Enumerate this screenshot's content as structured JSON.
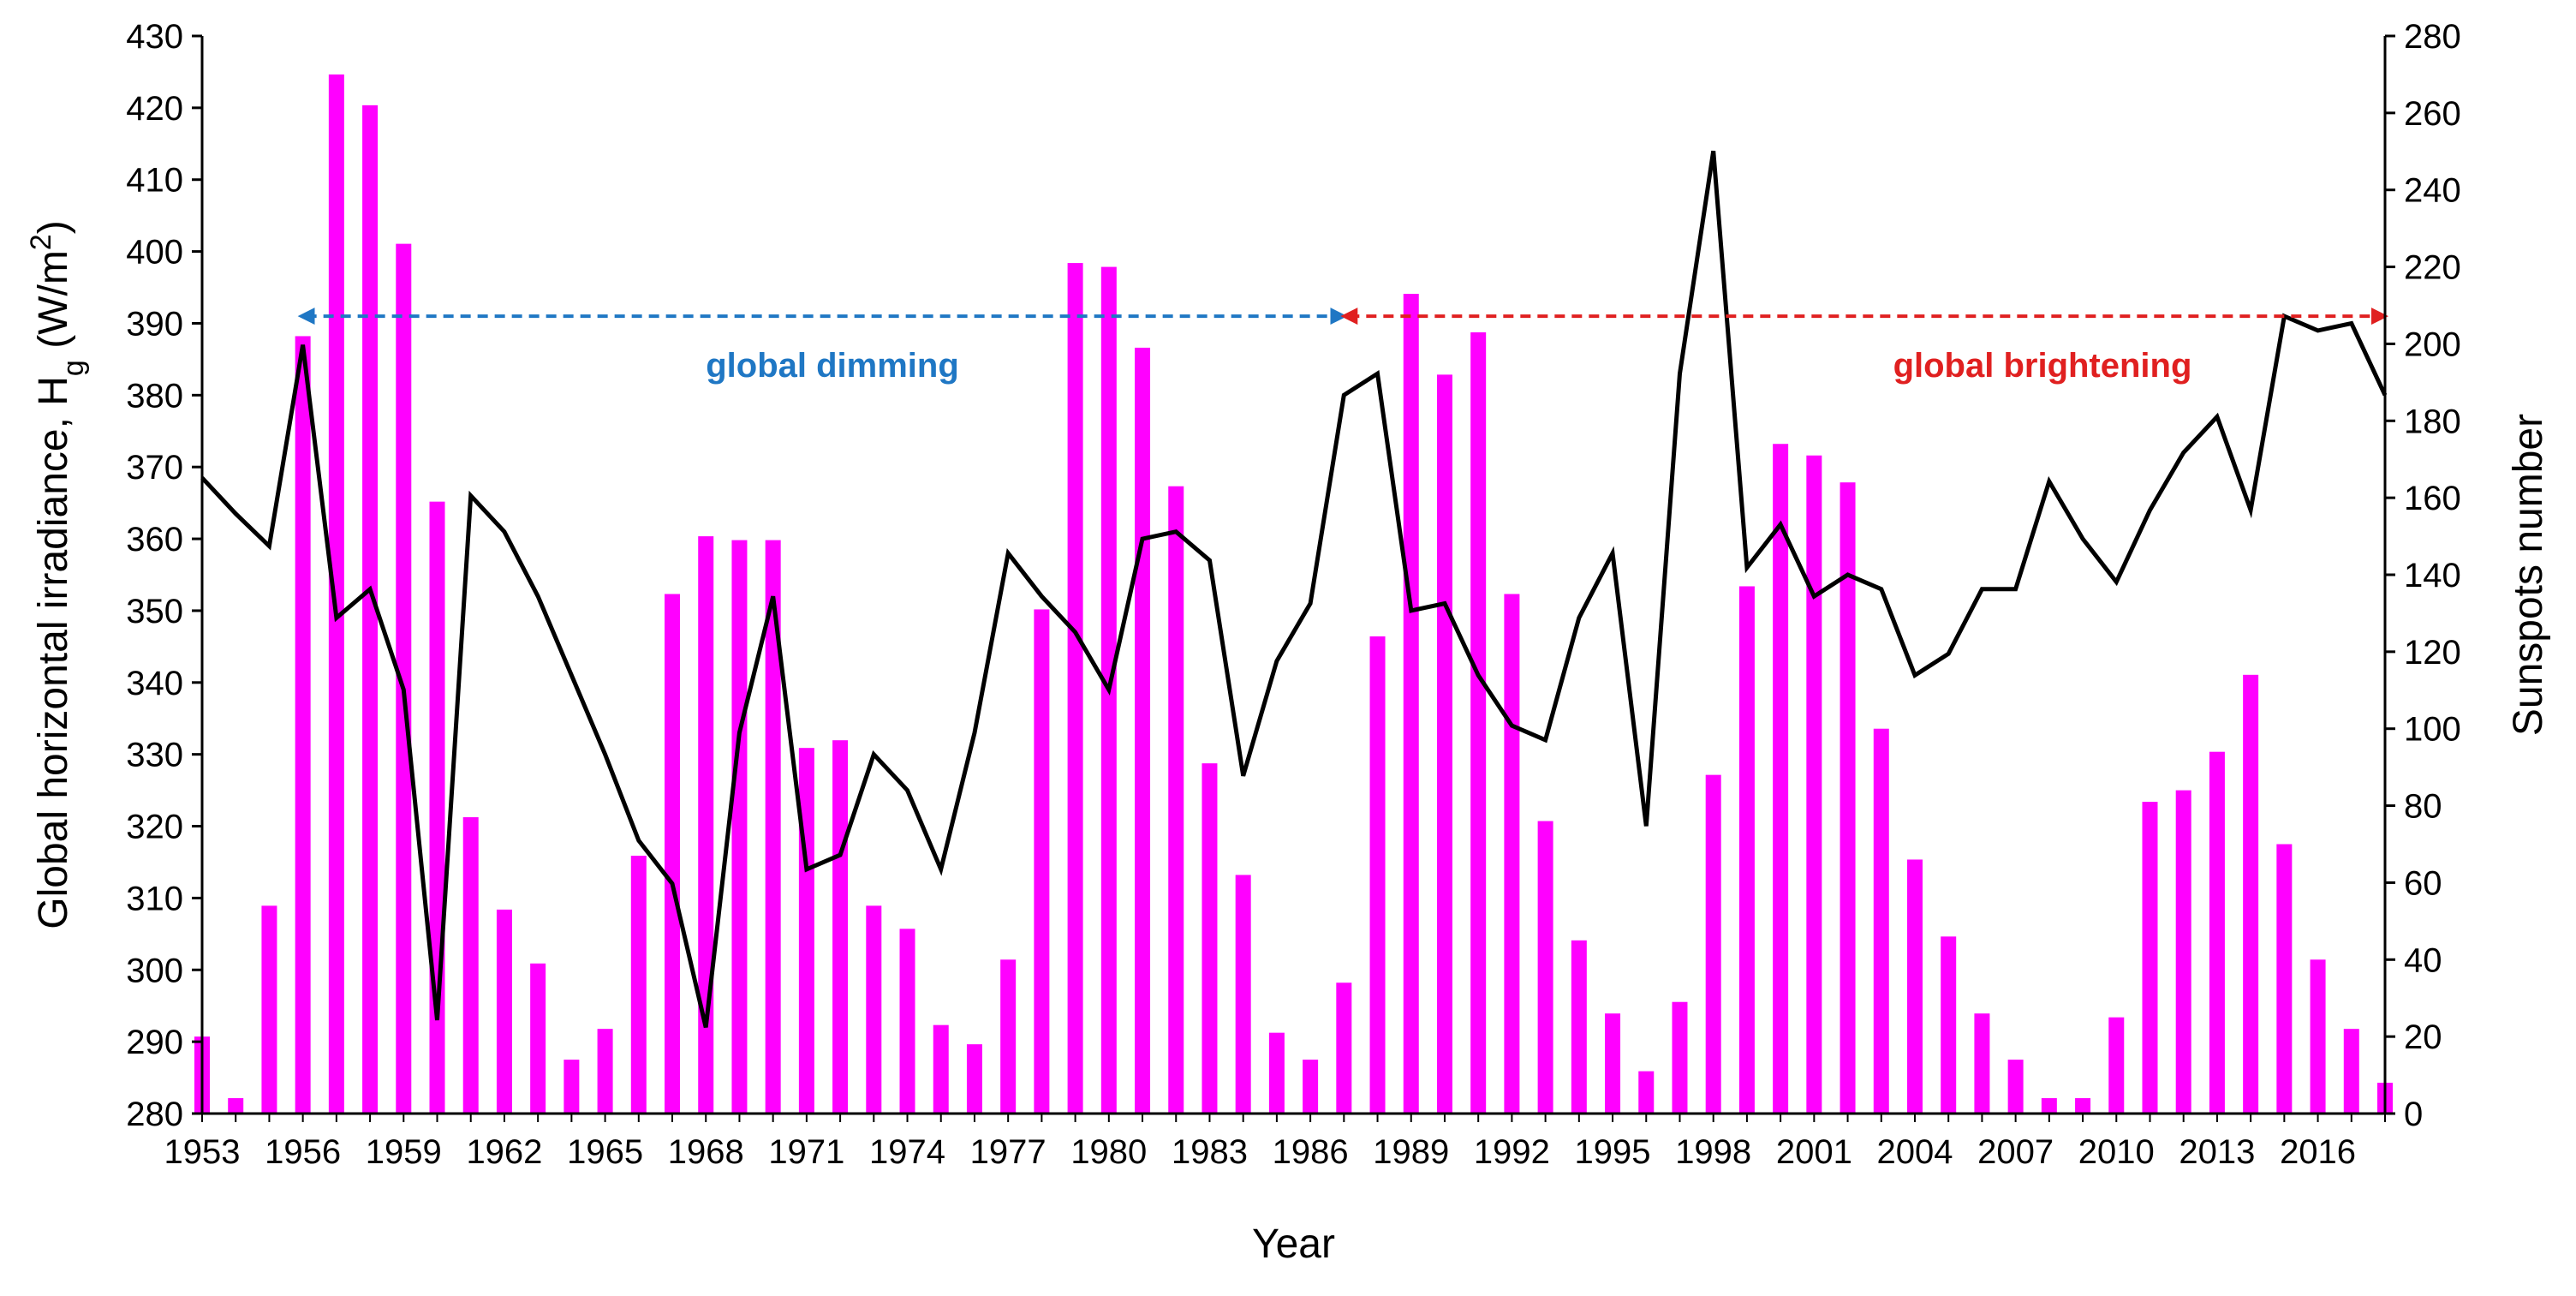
{
  "chart_data": {
    "type": "bar+line",
    "x": [
      1953,
      1954,
      1955,
      1956,
      1957,
      1958,
      1959,
      1960,
      1961,
      1962,
      1963,
      1964,
      1965,
      1966,
      1967,
      1968,
      1969,
      1970,
      1971,
      1972,
      1973,
      1974,
      1975,
      1976,
      1977,
      1978,
      1979,
      1980,
      1981,
      1982,
      1983,
      1984,
      1985,
      1986,
      1987,
      1988,
      1989,
      1990,
      1991,
      1992,
      1993,
      1994,
      1995,
      1996,
      1997,
      1998,
      1999,
      2000,
      2001,
      2002,
      2003,
      2004,
      2005,
      2006,
      2007,
      2008,
      2009,
      2010,
      2011,
      2012,
      2013,
      2014,
      2015,
      2016,
      2017,
      2018
    ],
    "x_tick_labels": [
      "1953",
      "1956",
      "1959",
      "1962",
      "1965",
      "1968",
      "1971",
      "1974",
      "1977",
      "1980",
      "1983",
      "1986",
      "1989",
      "1992",
      "1995",
      "1998",
      "2001",
      "2004",
      "2007",
      "2010",
      "2013",
      "2016"
    ],
    "series": [
      {
        "name": "Sunspots number",
        "type": "bar",
        "axis": "right",
        "color": "#ff00ff",
        "values": [
          20,
          4,
          54,
          202,
          270,
          262,
          226,
          159,
          77,
          53,
          39,
          14,
          22,
          67,
          135,
          150,
          149,
          149,
          95,
          97,
          54,
          48,
          23,
          18,
          40,
          131,
          221,
          220,
          199,
          163,
          91,
          62,
          21,
          14,
          34,
          124,
          213,
          192,
          203,
          135,
          76,
          45,
          26,
          11,
          29,
          88,
          137,
          174,
          171,
          164,
          100,
          66,
          46,
          26,
          14,
          4,
          4,
          25,
          81,
          84,
          94,
          114,
          70,
          40,
          22,
          8
        ]
      },
      {
        "name": "Global horizontal irradiance",
        "type": "line",
        "axis": "left",
        "color": "#000000",
        "values": [
          368.5,
          363.5,
          359,
          387,
          349,
          353,
          339,
          293,
          366,
          361,
          352,
          341,
          330,
          318,
          312,
          292,
          333,
          352,
          314,
          316,
          330,
          325,
          314,
          333,
          358,
          352,
          347,
          339,
          360,
          361,
          357,
          327,
          343,
          351,
          380,
          383,
          350,
          351,
          341,
          334,
          332,
          349,
          358,
          320,
          383,
          414,
          356,
          362,
          352,
          355,
          353,
          341,
          344,
          353,
          353,
          368,
          360,
          354,
          364,
          372,
          377,
          364,
          391,
          389,
          390,
          380
        ]
      }
    ],
    "y_left": {
      "label": "Global horizontal irradiance, H",
      "subscript": "g",
      "units_pre": " (W/m",
      "units_sup": "2",
      "units_post": ")",
      "lim": [
        280,
        430
      ],
      "ticks": [
        "280",
        "290",
        "300",
        "310",
        "320",
        "330",
        "340",
        "350",
        "360",
        "370",
        "380",
        "390",
        "400",
        "410",
        "420",
        "430"
      ]
    },
    "y_right": {
      "label": "Sunspots number",
      "lim": [
        0,
        280
      ],
      "ticks": [
        "0",
        "20",
        "40",
        "60",
        "80",
        "100",
        "120",
        "140",
        "160",
        "180",
        "200",
        "220",
        "240",
        "260",
        "280"
      ]
    },
    "xlabel": "Year",
    "annotations": [
      {
        "text": "global dimming",
        "color": "#1f77c4",
        "from_year": 1956,
        "to_year": 1987,
        "level": 391
      },
      {
        "text": "global brightening",
        "color": "#e02020",
        "from_year": 1987,
        "to_year": 2018,
        "level": 391
      }
    ]
  }
}
